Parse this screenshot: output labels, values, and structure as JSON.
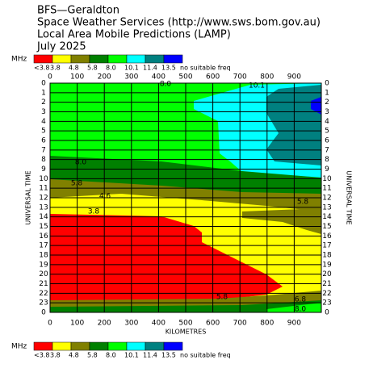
{
  "chart_data": {
    "type": "contour",
    "title_lines": [
      "BFS—Geraldton",
      "Space Weather Services (http://www.sws.bom.gov.au)",
      "Local Area Mobile Predictions (LAMP)",
      "July 2025"
    ],
    "unit": "MHz",
    "legend": {
      "labels": [
        "<3.8",
        "3.8",
        "4.8",
        "5.8",
        "8.0",
        "10.1",
        "11.4",
        "13.5",
        "no suitable freq"
      ],
      "colors": [
        "#ff0000",
        "#ffff00",
        "#808000",
        "#008000",
        "#00ff00",
        "#00ffff",
        "#008080",
        "#0000ff",
        "#ffffff"
      ]
    },
    "xlabel": "KILOMETRES",
    "ylabel": "UNIVERSAL TIME",
    "xlim": [
      0,
      1000
    ],
    "xticks": [
      0,
      100,
      200,
      300,
      400,
      500,
      600,
      700,
      800,
      900
    ],
    "ylim": [
      0,
      24
    ],
    "yticks": [
      0,
      1,
      2,
      3,
      4,
      5,
      6,
      7,
      8,
      9,
      10,
      11,
      12,
      13,
      14,
      15,
      16,
      17,
      18,
      19,
      20,
      21,
      22,
      23,
      {
        "value": 24,
        "label": "0"
      }
    ],
    "annotations": [
      "8.0",
      "10.1",
      "8.0",
      "5.8",
      "4.6",
      "3.8",
      "5.8",
      "5.8",
      "6.8",
      "8.0"
    ],
    "grid": true
  }
}
